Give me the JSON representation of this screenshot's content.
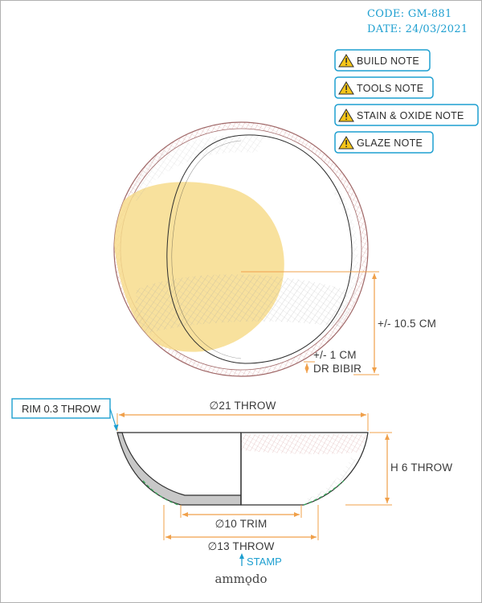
{
  "header": {
    "code": "CODE: GM-881",
    "date": "DATE: 24/03/2021"
  },
  "notes": [
    {
      "label": "BUILD NOTE"
    },
    {
      "label": "TOOLS NOTE"
    },
    {
      "label": "STAIN & OXIDE NOTE"
    },
    {
      "label": "GLAZE NOTE"
    }
  ],
  "top_view": {
    "radius_label": "+/- 10.5 CM",
    "rim_label": "+/- 1 CM",
    "rim_sub_label": "DR BIBIR"
  },
  "section_view": {
    "rim_label": "RIM 0.3 THROW",
    "diameter_label": "∅21 THROW",
    "height_label": "H 6 THROW",
    "trim_label": "∅10 TRIM",
    "base_label": "∅13 THROW",
    "stamp_label": "STAMP"
  },
  "brand": "ammǫdo",
  "colors": {
    "accent_blue": "#1d9fd0",
    "dimension_orange": "#f0a04a",
    "rim_pink": "#d9a6a0",
    "yellow_fill": "#f7dc8c",
    "warning_yellow": "#f5c518",
    "foot_green": "#3aa55b"
  }
}
